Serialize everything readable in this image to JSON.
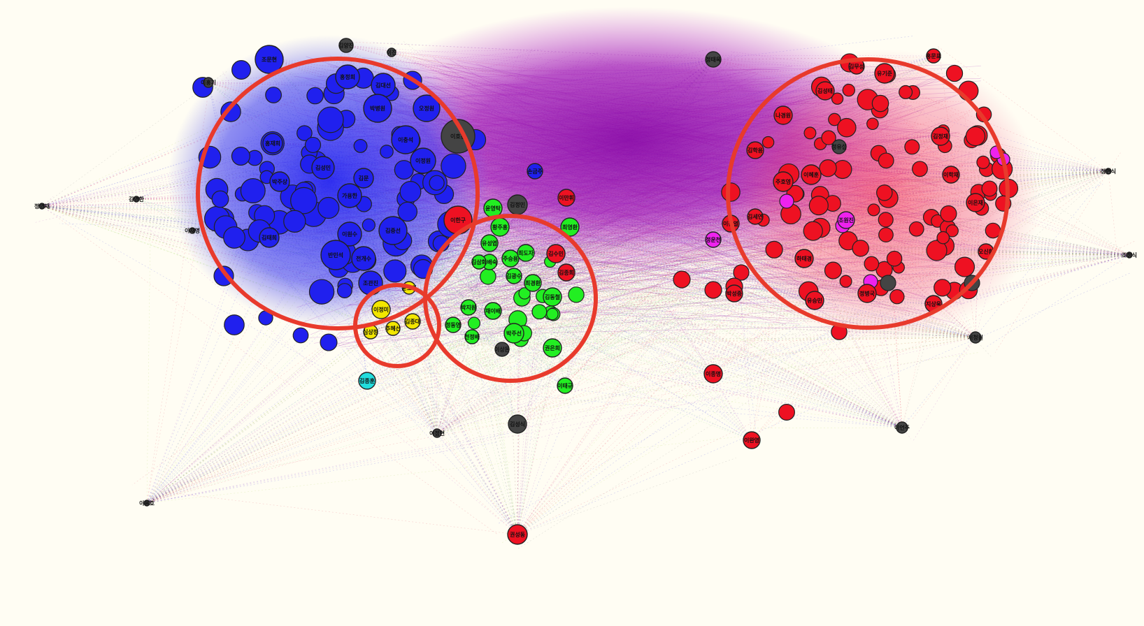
{
  "colors": {
    "background": "#fffdf3",
    "blue": "#2020ee",
    "red": "#ee1122",
    "green": "#22ee22",
    "yellow": "#f2e600",
    "cyan": "#22dddd",
    "magenta": "#ee22ee",
    "dark": "#444444",
    "highlight_circle": "#e83a2c",
    "edge_purple": "#9a10b0"
  },
  "highlight_circles": [
    {
      "name": "blue-cluster",
      "label": ""
    },
    {
      "name": "yellow-cluster",
      "label": ""
    },
    {
      "name": "green-cluster",
      "label": ""
    },
    {
      "name": "red-cluster",
      "label": ""
    }
  ],
  "nodes": [
    {
      "label": "조문현",
      "group": "blue"
    },
    {
      "label": "홍정희",
      "group": "blue"
    },
    {
      "label": "김대선",
      "group": "blue"
    },
    {
      "label": "오정원",
      "group": "blue"
    },
    {
      "label": "박병원",
      "group": "blue"
    },
    {
      "label": "이충석",
      "group": "blue"
    },
    {
      "label": "홍재희",
      "group": "blue"
    },
    {
      "label": "이정원",
      "group": "blue"
    },
    {
      "label": "김문",
      "group": "blue"
    },
    {
      "label": "김성민",
      "group": "blue"
    },
    {
      "label": "가용한",
      "group": "blue"
    },
    {
      "label": "전개수",
      "group": "blue"
    },
    {
      "label": "김중선",
      "group": "blue"
    },
    {
      "label": "조관진",
      "group": "blue"
    },
    {
      "label": "이원수",
      "group": "blue"
    },
    {
      "label": "반민석",
      "group": "blue"
    },
    {
      "label": "김태희",
      "group": "blue"
    },
    {
      "label": "박주상",
      "group": "blue"
    },
    {
      "label": "정영재",
      "group": "dark"
    },
    {
      "label": "김영한",
      "group": "dark"
    },
    {
      "label": "이재명",
      "group": "dark"
    },
    {
      "label": "이홍기",
      "group": "dark"
    },
    {
      "label": "김양진",
      "group": "dark"
    },
    {
      "label": "이진",
      "group": "dark"
    },
    {
      "label": "이호진",
      "group": "dark"
    },
    {
      "label": "이한구",
      "group": "red"
    },
    {
      "label": "이만휘",
      "group": "red"
    },
    {
      "label": "김정민",
      "group": "dark"
    },
    {
      "label": "최영환",
      "group": "green"
    },
    {
      "label": "윤영탁",
      "group": "green"
    },
    {
      "label": "황주홍",
      "group": "green"
    },
    {
      "label": "유성엽",
      "group": "green"
    },
    {
      "label": "조배숙",
      "group": "green"
    },
    {
      "label": "주승용",
      "group": "green"
    },
    {
      "label": "최도자",
      "group": "green"
    },
    {
      "label": "김광수",
      "group": "green"
    },
    {
      "label": "김수민",
      "group": "red"
    },
    {
      "label": "김종회",
      "group": "red"
    },
    {
      "label": "김동철",
      "group": "green"
    },
    {
      "label": "박지원",
      "group": "green"
    },
    {
      "label": "채이배",
      "group": "green"
    },
    {
      "label": "박주선",
      "group": "green"
    },
    {
      "label": "권은희",
      "group": "green"
    },
    {
      "label": "천정배",
      "group": "green"
    },
    {
      "label": "정동영",
      "group": "green"
    },
    {
      "label": "이태규",
      "group": "green"
    },
    {
      "label": "최경환",
      "group": "green"
    },
    {
      "label": "이상돈",
      "group": "dark"
    },
    {
      "label": "김삼화",
      "group": "green"
    },
    {
      "label": "이정미",
      "group": "yellow"
    },
    {
      "label": "김종대",
      "group": "yellow"
    },
    {
      "label": "추혜선",
      "group": "yellow"
    },
    {
      "label": "윤소하",
      "group": "yellow"
    },
    {
      "label": "심상정",
      "group": "yellow"
    },
    {
      "label": "김종훈",
      "group": "cyan"
    },
    {
      "label": "이정현",
      "group": "dark"
    },
    {
      "label": "김성식",
      "group": "dark"
    },
    {
      "label": "이용호",
      "group": "dark"
    },
    {
      "label": "정태옥",
      "group": "dark"
    },
    {
      "label": "이언주",
      "group": "dark"
    },
    {
      "label": "서청원",
      "group": "dark"
    },
    {
      "label": "손금주",
      "group": "blue"
    },
    {
      "label": "정유섭",
      "group": "dark"
    },
    {
      "label": "김무성",
      "group": "red"
    },
    {
      "label": "홍문표",
      "group": "red"
    },
    {
      "label": "김성태",
      "group": "red"
    },
    {
      "label": "유기준",
      "group": "red"
    },
    {
      "label": "김정재",
      "group": "red"
    },
    {
      "label": "이은재",
      "group": "red"
    },
    {
      "label": "나경원",
      "group": "red"
    },
    {
      "label": "주호영",
      "group": "red"
    },
    {
      "label": "김학용",
      "group": "red"
    },
    {
      "label": "이혜훈",
      "group": "red"
    },
    {
      "label": "김세연",
      "group": "red"
    },
    {
      "label": "하태경",
      "group": "red"
    },
    {
      "label": "정병국",
      "group": "red"
    },
    {
      "label": "유승민",
      "group": "red"
    },
    {
      "label": "지상욱",
      "group": "red"
    },
    {
      "label": "오신환",
      "group": "red"
    },
    {
      "label": "이학재",
      "group": "red"
    },
    {
      "label": "이찬열",
      "group": "red"
    },
    {
      "label": "정운천",
      "group": "magenta"
    },
    {
      "label": "박성중",
      "group": "red"
    },
    {
      "label": "조원진",
      "group": "magenta"
    },
    {
      "label": "이종명",
      "group": "red"
    },
    {
      "label": "정현식",
      "group": "dark"
    },
    {
      "label": "조정식",
      "group": "dark"
    },
    {
      "label": "이완영",
      "group": "red"
    },
    {
      "label": "권성동",
      "group": "red"
    }
  ]
}
